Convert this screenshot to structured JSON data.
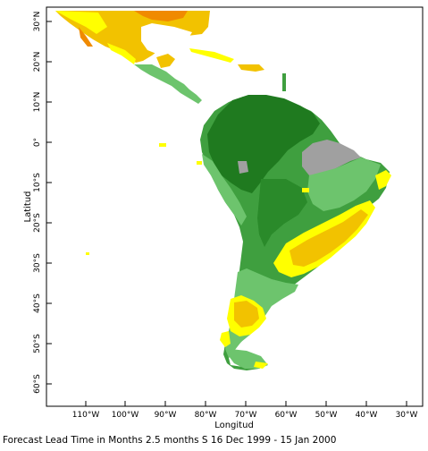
{
  "map": {
    "x_axis_label": "Longitud",
    "y_axis_label": "Latitud",
    "lon_ticks": [
      "110°W",
      "100°W",
      "90°W",
      "80°W",
      "70°W",
      "60°W",
      "50°W",
      "40°W",
      "30°W"
    ],
    "lat_ticks": [
      "30°N",
      "20°N",
      "10°N",
      "0°",
      "10°S",
      "20°S",
      "30°S",
      "40°S",
      "50°S",
      "60°S"
    ],
    "extent": {
      "lon_min": -119,
      "lon_max": -26,
      "lat_min": -65,
      "lat_max": 35
    },
    "colors": {
      "dark_green": "#1f7a1f",
      "medium_green": "#3f9f3f",
      "light_green": "#6dc46d",
      "yellow": "#ffff00",
      "gold": "#f2c200",
      "orange": "#f08a00",
      "gray": "#a0a0a0",
      "ocean": "#ffffff"
    }
  },
  "caption": "Forecast Lead Time in Months 2.5 months S 16 Dec 1999 - 15 Jan 2000"
}
